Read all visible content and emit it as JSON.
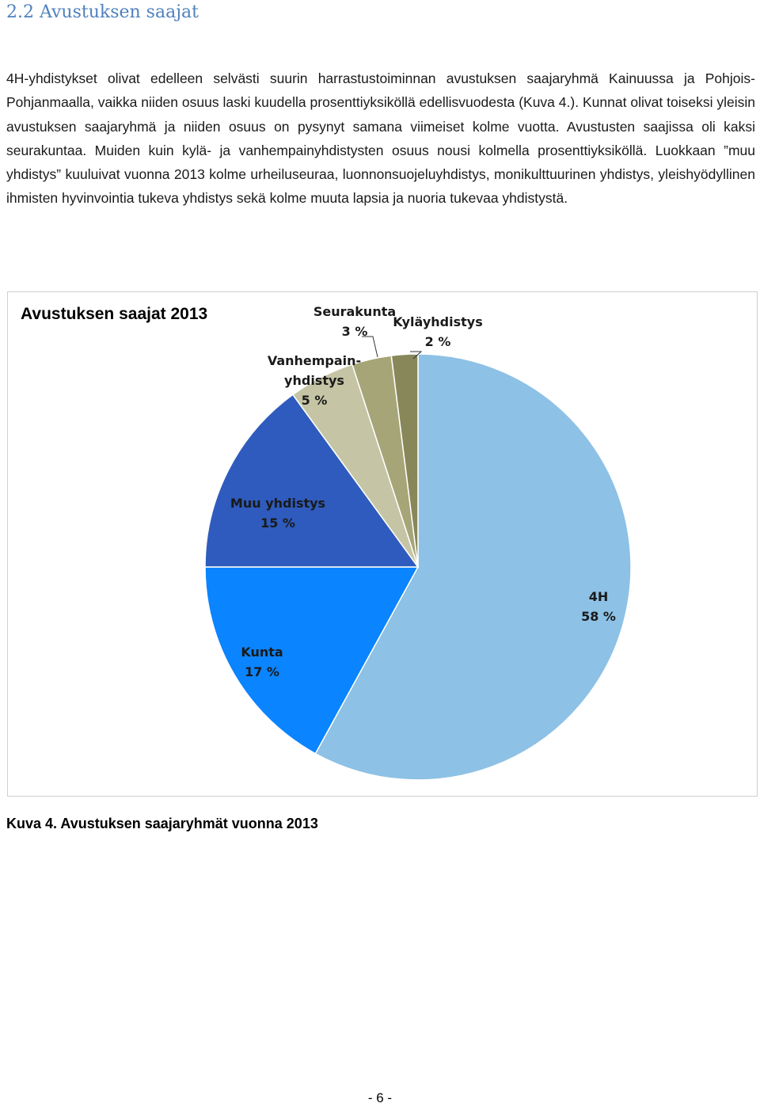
{
  "heading": "2.2 Avustuksen saajat",
  "paragraph": "4H-yhdistykset olivat edelleen selvästi suurin harrastustoiminnan avustuksen saajaryhmä Kainuussa ja Pohjois-Pohjanmaalla, vaikka niiden osuus laski kuudella prosenttiyksiköllä edellisvuodesta (Kuva 4.). Kunnat olivat toiseksi yleisin avustuksen saajaryhmä ja niiden osuus on pysynyt samana viimeiset kolme vuotta. Avustusten saajissa oli kaksi seurakuntaa. Muiden kuin kylä- ja vanhempainyhdistysten osuus nousi kolmella prosenttiyksiköllä. Luokkaan ”muu yhdistys” kuuluivat vuonna 2013 kolme urheiluseuraa, luonnonsuojeluyhdistys, monikulttuurinen yhdistys, yleishyödyllinen ihmisten hyvinvointia tukeva yhdistys sekä kolme muuta lapsia ja nuoria tukevaa yhdistystä.",
  "chart_data": {
    "type": "pie",
    "title": "Avustuksen saajat 2013",
    "slices": [
      {
        "label_lines": [
          "4H",
          "58 %"
        ],
        "value": 58,
        "color": "#8dc1e5"
      },
      {
        "label_lines": [
          "Kunta",
          "17 %"
        ],
        "value": 17,
        "color": "#0a84ff"
      },
      {
        "label_lines": [
          "Muu yhdistys",
          "15 %"
        ],
        "value": 15,
        "color": "#2e5bbd"
      },
      {
        "label_lines": [
          "Vanhempain-",
          "yhdistys",
          "5 %"
        ],
        "value": 5,
        "color": "#c5c5a6"
      },
      {
        "label_lines": [
          "Seurakunta",
          "3 %"
        ],
        "value": 3,
        "color": "#a5a577"
      },
      {
        "label_lines": [
          "Kyläyhdistys",
          "2 %"
        ],
        "value": 2,
        "color": "#87875a"
      }
    ]
  },
  "caption": "Kuva 4. Avustuksen saajaryhmät vuonna 2013",
  "page_number": "- 6 -"
}
